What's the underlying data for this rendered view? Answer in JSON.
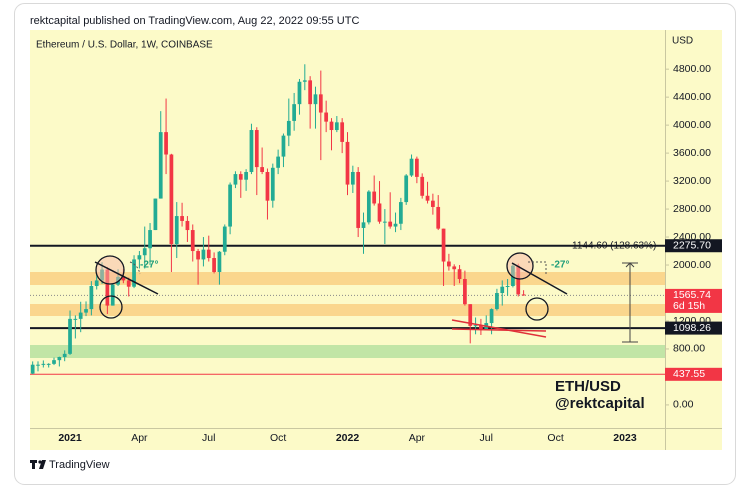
{
  "header": {
    "byline": "rektcapital published on TradingView.com, Aug 22, 2022 09:55 UTC"
  },
  "footer": {
    "brand": "TradingView"
  },
  "chart_data": {
    "type": "candlestick",
    "title": "Ethereum / U.S. Dollar, 1W, COINBASE",
    "y_label": "USD",
    "up_color": "#22ab94",
    "down_color": "#f23645",
    "grid": false,
    "ylim": [
      -330,
      5360
    ],
    "yticks": [
      {
        "value": 0,
        "label": "0.00"
      },
      {
        "value": 800,
        "label": "800.00"
      },
      {
        "value": 1200,
        "label": "1200.00"
      },
      {
        "value": 2000,
        "label": "2000.00"
      },
      {
        "value": 2400,
        "label": "2400.00"
      },
      {
        "value": 2800,
        "label": "2800.00"
      },
      {
        "value": 3200,
        "label": "3200.00"
      },
      {
        "value": 3600,
        "label": "3600.00"
      },
      {
        "value": 4000,
        "label": "4000.00"
      },
      {
        "value": 4400,
        "label": "4400.00"
      },
      {
        "value": 4800,
        "label": "4800.00"
      }
    ],
    "categories": [
      null,
      null,
      null,
      null,
      null,
      null,
      null,
      "2021",
      null,
      null,
      null,
      null,
      null,
      null,
      null,
      null,
      null,
      null,
      null,
      null,
      "Apr",
      null,
      null,
      null,
      null,
      null,
      null,
      null,
      null,
      null,
      null,
      null,
      null,
      "Jul",
      null,
      null,
      null,
      null,
      null,
      null,
      null,
      null,
      null,
      null,
      null,
      null,
      "Oct",
      null,
      null,
      null,
      null,
      null,
      null,
      null,
      null,
      null,
      null,
      null,
      null,
      "2022",
      null,
      null,
      null,
      null,
      null,
      null,
      null,
      null,
      null,
      null,
      null,
      null,
      "Apr",
      null,
      null,
      null,
      null,
      null,
      null,
      null,
      null,
      null,
      null,
      null,
      null,
      "Jul",
      null,
      null,
      null,
      null,
      null,
      null,
      null,
      null,
      null,
      null,
      null,
      null,
      "Oct",
      null,
      null,
      null,
      null,
      null,
      null,
      null,
      null,
      null,
      null,
      null,
      null,
      "2023",
      null,
      null,
      null,
      null,
      null,
      null,
      null
    ],
    "open": [
      448,
      575,
      575,
      587,
      587,
      640,
      685,
      730,
      1230,
      1230,
      1320,
      1370,
      1700,
      1780,
      1935,
      1420,
      1720,
      1830,
      1780,
      1690,
      2080,
      2140,
      2240,
      2500,
      2950,
      3900,
      3580,
      2300,
      2700,
      2630,
      2500,
      2200,
      2080,
      2220,
      2100,
      1900,
      2190,
      2550,
      3150,
      3300,
      3220,
      3330,
      3930,
      3400,
      3330,
      2920,
      3390,
      3550,
      3850,
      4060,
      4300,
      4620,
      4640,
      4300,
      4440,
      4180,
      4050,
      3930,
      4040,
      3760,
      3150,
      3330,
      2530,
      2610,
      3050,
      2880,
      2620,
      2620,
      2550,
      2590,
      2900,
      3280,
      3520,
      3260,
      2990,
      2920,
      2830,
      2520,
      2050,
      1980,
      1940,
      1800,
      1440,
      1130,
      1140,
      1070,
      1170,
      1370,
      1600,
      1690,
      1700,
      1990,
      1580,
      null,
      null,
      null,
      null,
      null,
      null,
      null,
      null,
      null,
      null,
      null,
      null,
      null,
      null,
      null,
      null,
      null,
      null,
      null,
      null,
      null,
      null,
      null,
      null,
      null,
      null
    ],
    "high": [
      622,
      623,
      636,
      596,
      676,
      690,
      780,
      1350,
      1280,
      1475,
      1480,
      1770,
      1870,
      2040,
      1970,
      1740,
      1940,
      1940,
      1820,
      2140,
      2200,
      2550,
      2600,
      2950,
      4200,
      4380,
      3590,
      2900,
      2890,
      2700,
      2580,
      2230,
      2400,
      2420,
      2180,
      2200,
      2580,
      3180,
      3340,
      3340,
      3370,
      4020,
      3970,
      3680,
      3380,
      3450,
      3650,
      3880,
      4380,
      4460,
      4660,
      4870,
      4700,
      4550,
      4780,
      4350,
      4100,
      4130,
      4100,
      3900,
      3420,
      3400,
      2750,
      3070,
      3280,
      3200,
      2800,
      3040,
      2750,
      2960,
      3300,
      3580,
      3550,
      3310,
      3190,
      3020,
      3000,
      2520,
      2160,
      2010,
      2000,
      1920,
      1440,
      1250,
      1230,
      1280,
      1380,
      1660,
      1780,
      1800,
      2030,
      2020,
      1640,
      null,
      null,
      null,
      null,
      null,
      null,
      null,
      null,
      null,
      null,
      null,
      null,
      null,
      null,
      null,
      null,
      null,
      null,
      null,
      null,
      null,
      null,
      null,
      null,
      null,
      null
    ],
    "low": [
      440,
      480,
      535,
      535,
      570,
      550,
      625,
      715,
      950,
      1040,
      1270,
      1280,
      1650,
      1730,
      1300,
      1420,
      1700,
      1740,
      1550,
      1670,
      1950,
      1950,
      2000,
      2500,
      2950,
      3300,
      1900,
      2100,
      2550,
      2330,
      2050,
      1720,
      1980,
      2050,
      1880,
      1720,
      2140,
      2440,
      3100,
      2960,
      3060,
      3300,
      3000,
      3300,
      2650,
      2820,
      3300,
      3400,
      3700,
      3920,
      4150,
      4500,
      3950,
      3950,
      3500,
      3900,
      3640,
      3900,
      3600,
      3000,
      3030,
      2400,
      2160,
      2580,
      2850,
      2590,
      2300,
      2520,
      2470,
      2500,
      2860,
      3260,
      3170,
      2950,
      2880,
      2720,
      2500,
      1700,
      1920,
      1700,
      1740,
      1420,
      880,
      1010,
      1000,
      1070,
      1010,
      1350,
      1420,
      1560,
      1680,
      1550,
      1560,
      null,
      null,
      null,
      null,
      null,
      null,
      null,
      null,
      null,
      null,
      null,
      null,
      null,
      null,
      null,
      null,
      null,
      null,
      null,
      null,
      null,
      null,
      null,
      null,
      null,
      null
    ],
    "close": [
      575,
      575,
      587,
      587,
      640,
      685,
      730,
      1230,
      1230,
      1320,
      1370,
      1700,
      1780,
      1935,
      1420,
      1720,
      1830,
      1780,
      1690,
      2080,
      2140,
      2240,
      2500,
      2950,
      3900,
      3580,
      2300,
      2700,
      2630,
      2500,
      2200,
      2080,
      2220,
      2100,
      1900,
      2190,
      2550,
      3150,
      3300,
      3220,
      3330,
      3930,
      3400,
      3330,
      2920,
      3390,
      3550,
      3850,
      4060,
      4300,
      4620,
      4640,
      4300,
      4440,
      4180,
      4050,
      3930,
      4040,
      3760,
      3150,
      3330,
      2530,
      2610,
      3050,
      2880,
      2620,
      2620,
      2550,
      2590,
      2900,
      3280,
      3520,
      3260,
      2990,
      2920,
      2830,
      2520,
      2050,
      1980,
      1940,
      1800,
      1440,
      1130,
      1140,
      1070,
      1170,
      1370,
      1600,
      1690,
      1700,
      1990,
      1580,
      1565.74,
      null,
      null,
      null,
      null,
      null,
      null,
      null,
      null,
      null,
      null,
      null,
      null,
      null,
      null,
      null,
      null,
      null,
      null,
      null,
      null,
      null,
      null,
      null,
      null,
      null,
      null
    ],
    "levels": [
      {
        "value": 2275.7,
        "label": "2275.70",
        "color": "#131722",
        "style": "solid"
      },
      {
        "value": 1565.74,
        "label": "1565.74",
        "color": "#f23645",
        "style": "dotted",
        "countdown": "6d 15h"
      },
      {
        "value": 1098.26,
        "label": "1098.26",
        "color": "#131722",
        "style": "solid"
      },
      {
        "value": 437.55,
        "label": "437.55",
        "color": "#f23645",
        "style": "solid"
      }
    ],
    "annotations": {
      "measure": "1144.60 (128.63%)",
      "angle_left": "-27°",
      "angle_right": "-27°",
      "pair": "ETH/USD",
      "handle": "@rektcapital"
    }
  }
}
